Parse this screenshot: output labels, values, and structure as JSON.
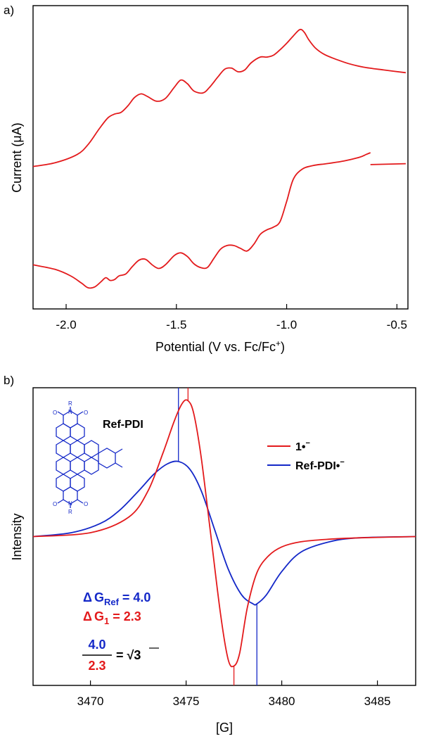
{
  "chart_data": [
    {
      "type": "line",
      "panel_label": "a)",
      "xlabel": "Potential (V vs. Fc/Fc",
      "xlabel_sup": "+",
      "xlabel_end": ")",
      "ylabel": "Current (μA)",
      "xlim": [
        -2.15,
        -0.45
      ],
      "xticks": [
        -2.0,
        -1.5,
        -1.0,
        -0.5
      ],
      "xtick_labels": [
        "-2.0",
        "-1.5",
        "-1.0",
        "-0.5"
      ],
      "yticks_visible": false,
      "color": "#e31a1c",
      "series": [
        {
          "x": [
            -2.15,
            -2.05,
            -1.95,
            -1.9,
            -1.85,
            -1.81,
            -1.78,
            -1.75,
            -1.72,
            -1.69,
            -1.66,
            -1.63,
            -1.59,
            -1.55,
            -1.51,
            -1.48,
            -1.45,
            -1.42,
            -1.38,
            -1.35,
            -1.31,
            -1.28,
            -1.25,
            -1.22,
            -1.19,
            -1.16,
            -1.12,
            -1.09,
            -1.06,
            -1.03,
            -1.0,
            -0.97,
            -0.94,
            -0.92,
            -0.9,
            -0.87,
            -0.83,
            -0.78,
            -0.72,
            -0.65,
            -0.56,
            -0.46
          ],
          "y": [
            2.0,
            2.4,
            3.3,
            4.4,
            6.1,
            7.3,
            7.7,
            7.9,
            8.6,
            9.5,
            9.9,
            9.6,
            9.1,
            9.4,
            10.6,
            11.4,
            11.0,
            10.2,
            10.0,
            10.6,
            11.8,
            12.6,
            12.7,
            12.3,
            12.5,
            13.3,
            13.9,
            13.9,
            14.1,
            14.7,
            15.4,
            16.2,
            16.9,
            16.6,
            15.8,
            14.9,
            14.2,
            13.7,
            13.2,
            12.8,
            12.5,
            12.2
          ]
        },
        {
          "x": [
            -2.15,
            -2.05,
            -1.98,
            -1.93,
            -1.9,
            -1.87,
            -1.84,
            -1.82,
            -1.8,
            -1.78,
            -1.76,
            -1.73,
            -1.7,
            -1.67,
            -1.64,
            -1.61,
            -1.58,
            -1.55,
            -1.51,
            -1.48,
            -1.45,
            -1.42,
            -1.39,
            -1.36,
            -1.33,
            -1.3,
            -1.27,
            -1.24,
            -1.21,
            -1.18,
            -1.15,
            -1.12,
            -1.09,
            -1.06,
            -1.03,
            -1.0,
            -0.97,
            -0.93,
            -0.88,
            -0.82,
            -0.74,
            -0.67,
            -0.64,
            -0.62
          ],
          "y": [
            -8.7,
            -9.2,
            -9.9,
            -10.7,
            -11.2,
            -11.1,
            -10.5,
            -10.1,
            -10.4,
            -10.3,
            -9.9,
            -9.7,
            -8.9,
            -8.2,
            -8.1,
            -8.7,
            -9.1,
            -8.7,
            -7.7,
            -7.4,
            -7.8,
            -8.6,
            -9.0,
            -9.0,
            -8.0,
            -7.0,
            -6.6,
            -6.6,
            -6.9,
            -7.2,
            -6.5,
            -5.4,
            -4.9,
            -4.6,
            -4.0,
            -1.8,
            0.6,
            1.7,
            2.1,
            2.3,
            2.6,
            3.0,
            3.3,
            3.5
          ]
        },
        {
          "x": [
            -0.62,
            -0.46
          ],
          "y": [
            2.2,
            2.3
          ]
        }
      ],
      "ylim": [
        -13.5,
        19.5
      ]
    },
    {
      "type": "line",
      "panel_label": "b)",
      "xlabel": "[G]",
      "ylabel": "Intensity",
      "xlim": [
        3467,
        3487
      ],
      "xticks": [
        3470,
        3475,
        3480,
        3485
      ],
      "xtick_labels": [
        "3470",
        "3475",
        "3480",
        "3485"
      ],
      "yticks_visible": false,
      "ylim": [
        -1.15,
        1.15
      ],
      "series": [
        {
          "name": "1•",
          "name_sup": "−",
          "color": "#e31a1c",
          "x": [
            3467,
            3470,
            3472,
            3473,
            3473.8,
            3474.4,
            3474.8,
            3475.1,
            3475.4,
            3475.8,
            3476.3,
            3476.8,
            3477.2,
            3477.5,
            3477.8,
            3478.2,
            3478.7,
            3479.3,
            3480,
            3481,
            3482.5,
            3484,
            3487
          ],
          "y": [
            0.0,
            0.03,
            0.15,
            0.35,
            0.65,
            0.9,
            1.03,
            1.05,
            0.95,
            0.6,
            0.0,
            -0.6,
            -0.95,
            -1.0,
            -0.9,
            -0.55,
            -0.28,
            -0.15,
            -0.08,
            -0.04,
            -0.02,
            -0.01,
            0.0
          ]
        },
        {
          "name": "Ref-PDI•",
          "name_sup": "−",
          "color": "#1428c8",
          "x": [
            3467,
            3469,
            3470.5,
            3471.5,
            3472.5,
            3473.3,
            3474,
            3474.6,
            3475.2,
            3475.8,
            3476.5,
            3477.2,
            3477.9,
            3478.5,
            3478.7,
            3479.2,
            3480,
            3481,
            3482.5,
            3484,
            3487
          ],
          "y": [
            0.0,
            0.03,
            0.1,
            0.2,
            0.35,
            0.48,
            0.56,
            0.58,
            0.52,
            0.35,
            0.05,
            -0.25,
            -0.45,
            -0.52,
            -0.52,
            -0.45,
            -0.27,
            -0.12,
            -0.04,
            -0.01,
            0.0
          ]
        }
      ],
      "markers": [
        {
          "x": 3474.6,
          "color": "#1428c8",
          "y_from": 0.58,
          "y_to": 1.15
        },
        {
          "x": 3478.7,
          "color": "#1428c8",
          "y_from": -1.15,
          "y_to": -0.52
        },
        {
          "x": 3475.1,
          "color": "#e31a1c",
          "y_from": 1.05,
          "y_to": 1.15
        },
        {
          "x": 3477.5,
          "color": "#e31a1c",
          "y_from": -1.15,
          "y_to": -1.0
        }
      ],
      "annotations": {
        "dg_ref_delta": "Δ",
        "dg_ref_label": "G",
        "dg_ref_sub": "Ref",
        "dg_ref_value": " = 4.0",
        "dg_1_delta": "Δ",
        "dg_1_label": "G",
        "dg_1_sub": "1",
        "dg_1_value": " = 2.3",
        "frac_num": "4.0",
        "frac_den": "2.3",
        "frac_eq": "= √",
        "frac_root": "3",
        "molecule_label": "Ref-PDI",
        "mol_n": "N",
        "mol_r": "R",
        "mol_o": "O"
      }
    }
  ]
}
